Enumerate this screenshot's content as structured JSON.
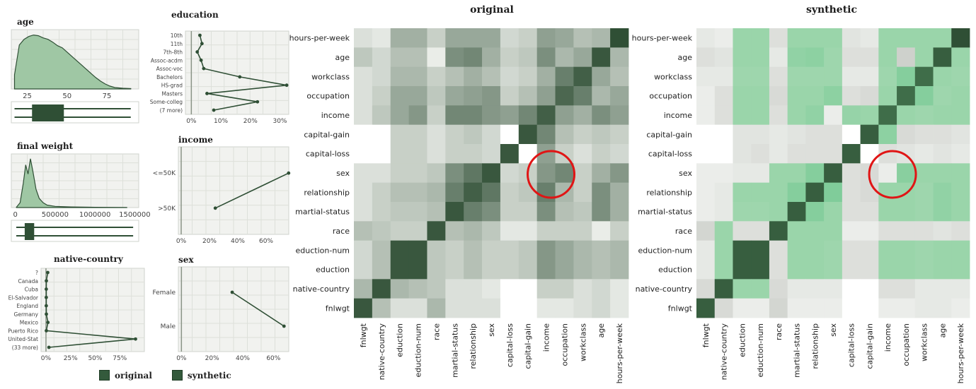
{
  "chart_data": [
    {
      "id": "age",
      "type": "area",
      "title": "age",
      "x_ticks": [
        25,
        50,
        75
      ],
      "xlim": [
        15,
        95
      ],
      "series": [
        {
          "name": "original",
          "x": [
            17,
            20,
            23,
            26,
            29,
            32,
            35,
            38,
            41,
            44,
            47,
            50,
            53,
            56,
            59,
            62,
            65,
            68,
            71,
            74,
            77,
            80,
            85,
            90
          ],
          "values": [
            20,
            62,
            70,
            74,
            76,
            75,
            72,
            70,
            66,
            61,
            58,
            52,
            46,
            40,
            34,
            28,
            22,
            16,
            11,
            7,
            4,
            2,
            1,
            0.5
          ]
        }
      ],
      "boxplots": [
        {
          "name": "original",
          "q1": 28,
          "median": 37,
          "q3": 48,
          "min": 17,
          "max": 90
        },
        {
          "name": "synthetic",
          "q1": 28,
          "median": 37,
          "q3": 48,
          "min": 17,
          "max": 90
        }
      ]
    },
    {
      "id": "final-weight",
      "type": "area",
      "title": "final weight",
      "x_ticks": [
        0,
        500000,
        1000000,
        1500000
      ],
      "x_tick_labels": [
        "0",
        "500000",
        "1000000",
        "1500000"
      ],
      "xlim": [
        -50000,
        1550000
      ],
      "series": [
        {
          "name": "original",
          "x": [
            10000,
            60000,
            100000,
            130000,
            160000,
            190000,
            220000,
            260000,
            300000,
            350000,
            400000,
            500000,
            700000,
            1000000,
            1400000
          ],
          "values": [
            0,
            8,
            40,
            70,
            55,
            80,
            60,
            30,
            15,
            8,
            4,
            2,
            1,
            0.5,
            0.2
          ]
        }
      ],
      "boxplots": [
        {
          "name": "original",
          "q1": 118000,
          "median": 178000,
          "q3": 237000,
          "min": 12000,
          "max": 1480000
        },
        {
          "name": "synthetic",
          "q1": 118000,
          "median": 178000,
          "q3": 237000,
          "min": 12000,
          "max": 1480000
        }
      ]
    },
    {
      "id": "native-country",
      "type": "line",
      "title": "native-country",
      "categories": [
        "?",
        "Canada",
        "Cuba",
        "El-Salvador",
        "England",
        "Germany",
        "Mexico",
        "Puerto Rico",
        "United-Stat",
        "(33 more)"
      ],
      "x_ticks": [
        0,
        25,
        50,
        75
      ],
      "x_tick_labels": [
        "0%",
        "25%",
        "50%",
        "75%"
      ],
      "xlim": [
        -5,
        100
      ],
      "series": [
        {
          "name": "original",
          "values": [
            1.8,
            0.4,
            0.3,
            0.3,
            0.3,
            0.4,
            2.0,
            0.4,
            91.0,
            3.0
          ]
        }
      ]
    },
    {
      "id": "education",
      "type": "line",
      "title": "education",
      "categories": [
        "10th",
        "11th",
        "7th-8th",
        "Assoc-acdm",
        "Assoc-voc",
        "Bachelors",
        "HS-grad",
        "Masters",
        "Some-colleg",
        "(7 more)"
      ],
      "x_ticks": [
        0,
        10,
        20,
        30
      ],
      "x_tick_labels": [
        "0%",
        "10%",
        "20%",
        "30%"
      ],
      "xlim": [
        -2,
        33
      ],
      "series": [
        {
          "name": "original",
          "values": [
            2.9,
            3.6,
            2.0,
            3.3,
            4.2,
            16.4,
            32.3,
            5.3,
            22.4,
            7.6
          ]
        }
      ]
    },
    {
      "id": "income",
      "type": "line",
      "title": "income",
      "categories": [
        "<=50K",
        ">50K"
      ],
      "x_ticks": [
        0,
        20,
        40,
        60
      ],
      "x_tick_labels": [
        "0%",
        "20%",
        "40%",
        "60%"
      ],
      "xlim": [
        -2,
        76
      ],
      "series": [
        {
          "name": "original",
          "values": [
            75.9,
            24.1
          ]
        }
      ]
    },
    {
      "id": "sex",
      "type": "line",
      "title": "sex",
      "categories": [
        "Female",
        "Male"
      ],
      "x_ticks": [
        0,
        20,
        40,
        60
      ],
      "x_tick_labels": [
        "0%",
        "20%",
        "40%",
        "60%"
      ],
      "xlim": [
        -2,
        70
      ],
      "series": [
        {
          "name": "original",
          "values": [
            33.1,
            66.9
          ]
        }
      ]
    },
    {
      "id": "heatmap-original",
      "type": "heatmap",
      "title": "original",
      "row_labels": [
        "hours-per-week",
        "age",
        "workclass",
        "occupation",
        "income",
        "capital-gain",
        "capital-loss",
        "sex",
        "relationship",
        "martial-status",
        "race",
        "eduction-num",
        "eduction",
        "native-country",
        "fnlwgt"
      ],
      "col_labels": [
        "fnlwgt",
        "native-country",
        "eduction",
        "eduction-num",
        "race",
        "martial-status",
        "relationship",
        "sex",
        "capital-loss",
        "capital-gain",
        "income",
        "occupation",
        "workclass",
        "age",
        "hours-per-week"
      ],
      "values": [
        [
          0.1,
          0.05,
          0.4,
          0.4,
          0.2,
          0.45,
          0.45,
          0.45,
          0.15,
          0.2,
          0.5,
          0.45,
          0.3,
          0.35,
          1.0
        ],
        [
          0.25,
          0.15,
          0.3,
          0.3,
          0.02,
          0.6,
          0.65,
          0.4,
          0.2,
          0.25,
          0.6,
          0.35,
          0.45,
          0.95,
          0.35
        ],
        [
          0.1,
          0.15,
          0.35,
          0.35,
          0.2,
          0.3,
          0.4,
          0.3,
          0.15,
          0.2,
          0.4,
          0.7,
          0.9,
          0.45,
          0.3
        ],
        [
          0.1,
          0.2,
          0.45,
          0.45,
          0.25,
          0.45,
          0.5,
          0.55,
          0.2,
          0.3,
          0.5,
          0.85,
          0.7,
          0.35,
          0.45
        ],
        [
          0.1,
          0.25,
          0.45,
          0.55,
          0.2,
          0.65,
          0.65,
          0.55,
          0.5,
          0.65,
          0.9,
          0.5,
          0.4,
          0.6,
          0.5
        ],
        [
          0.0,
          0.0,
          0.2,
          0.2,
          0.1,
          0.2,
          0.25,
          0.15,
          0.0,
          0.95,
          0.65,
          0.3,
          0.2,
          0.25,
          0.2
        ],
        [
          0.0,
          0.0,
          0.2,
          0.2,
          0.1,
          0.2,
          0.2,
          0.15,
          0.95,
          0.0,
          0.5,
          0.2,
          0.1,
          0.2,
          0.15
        ],
        [
          0.1,
          0.1,
          0.2,
          0.2,
          0.25,
          0.6,
          0.75,
          0.95,
          0.15,
          0.2,
          0.55,
          0.65,
          0.2,
          0.4,
          0.55
        ],
        [
          0.1,
          0.2,
          0.3,
          0.3,
          0.35,
          0.7,
          0.9,
          0.75,
          0.2,
          0.25,
          0.7,
          0.35,
          0.2,
          0.6,
          0.4
        ],
        [
          0.1,
          0.2,
          0.25,
          0.25,
          0.3,
          0.95,
          0.7,
          0.6,
          0.2,
          0.2,
          0.6,
          0.3,
          0.25,
          0.6,
          0.4
        ],
        [
          0.3,
          0.25,
          0.2,
          0.2,
          0.95,
          0.3,
          0.35,
          0.25,
          0.05,
          0.05,
          0.2,
          0.2,
          0.2,
          0.02,
          0.2
        ],
        [
          0.15,
          0.3,
          0.95,
          0.95,
          0.25,
          0.2,
          0.3,
          0.2,
          0.2,
          0.25,
          0.55,
          0.45,
          0.35,
          0.3,
          0.35
        ],
        [
          0.15,
          0.3,
          0.95,
          0.95,
          0.25,
          0.2,
          0.3,
          0.2,
          0.2,
          0.25,
          0.55,
          0.45,
          0.35,
          0.3,
          0.35
        ],
        [
          0.35,
          0.95,
          0.35,
          0.3,
          0.25,
          0.1,
          0.1,
          0.05,
          0.0,
          0.0,
          0.2,
          0.2,
          0.1,
          0.15,
          0.05
        ],
        [
          0.95,
          0.3,
          0.1,
          0.1,
          0.35,
          0.1,
          0.1,
          0.1,
          0.0,
          0.0,
          0.05,
          0.05,
          0.1,
          0.15,
          0.05
        ]
      ],
      "highlight": {
        "row": 7,
        "cols": [
          10,
          11
        ],
        "note": "circled cells"
      }
    },
    {
      "id": "heatmap-synthetic",
      "type": "heatmap",
      "title": "synthetic",
      "row_labels": [
        "hours-per-week",
        "age",
        "workclass",
        "occupation",
        "income",
        "capital-gain",
        "capital-loss",
        "sex",
        "relationship",
        "martial-status",
        "race",
        "eduction-num",
        "eduction",
        "native-country",
        "fnlwgt"
      ],
      "col_labels": [
        "fnlwgt",
        "native-country",
        "eduction",
        "eduction-num",
        "race",
        "martial-status",
        "relationship",
        "sex",
        "capital-loss",
        "capital-gain",
        "income",
        "occupation",
        "workclass",
        "age",
        "hours-per-week"
      ],
      "values": [
        [
          0.1,
          0.05,
          0.45,
          0.45,
          0.2,
          0.45,
          0.45,
          0.45,
          0.15,
          0.1,
          0.45,
          0.45,
          0.45,
          0.45,
          1.0
        ],
        [
          0.2,
          0.15,
          0.45,
          0.45,
          0.1,
          0.55,
          0.6,
          0.4,
          0.2,
          0.2,
          0.45,
          0.35,
          0.45,
          0.95,
          0.45
        ],
        [
          0.1,
          0.1,
          0.4,
          0.4,
          0.2,
          0.4,
          0.4,
          0.4,
          0.1,
          0.1,
          0.4,
          0.7,
          0.9,
          0.45,
          0.4
        ],
        [
          0.05,
          0.2,
          0.45,
          0.45,
          0.25,
          0.45,
          0.45,
          0.6,
          0.2,
          0.25,
          0.45,
          0.9,
          0.7,
          0.4,
          0.45
        ],
        [
          0.05,
          0.2,
          0.45,
          0.45,
          0.2,
          0.45,
          0.55,
          0.05,
          0.5,
          0.45,
          0.9,
          0.45,
          0.4,
          0.45,
          0.45
        ],
        [
          0.0,
          0.0,
          0.15,
          0.15,
          0.1,
          0.15,
          0.2,
          0.2,
          0.0,
          0.95,
          0.6,
          0.25,
          0.2,
          0.2,
          0.15
        ],
        [
          0.0,
          0.0,
          0.15,
          0.2,
          0.1,
          0.2,
          0.2,
          0.2,
          0.95,
          0.0,
          0.2,
          0.15,
          0.1,
          0.15,
          0.1
        ],
        [
          0.05,
          0.05,
          0.1,
          0.1,
          0.45,
          0.45,
          0.7,
          0.95,
          0.2,
          0.25,
          0.05,
          0.65,
          0.45,
          0.45,
          0.45
        ],
        [
          0.05,
          0.1,
          0.45,
          0.45,
          0.45,
          0.7,
          0.95,
          0.75,
          0.2,
          0.25,
          0.45,
          0.45,
          0.4,
          0.55,
          0.45
        ],
        [
          0.05,
          0.1,
          0.4,
          0.4,
          0.45,
          0.95,
          0.7,
          0.45,
          0.2,
          0.2,
          0.45,
          0.45,
          0.4,
          0.55,
          0.45
        ],
        [
          0.3,
          0.45,
          0.2,
          0.2,
          0.95,
          0.45,
          0.45,
          0.45,
          0.05,
          0.05,
          0.2,
          0.2,
          0.2,
          0.15,
          0.2
        ],
        [
          0.1,
          0.45,
          0.95,
          0.95,
          0.2,
          0.45,
          0.45,
          0.4,
          0.2,
          0.2,
          0.45,
          0.45,
          0.4,
          0.45,
          0.45
        ],
        [
          0.1,
          0.45,
          0.95,
          0.95,
          0.2,
          0.45,
          0.45,
          0.4,
          0.2,
          0.2,
          0.45,
          0.45,
          0.4,
          0.45,
          0.45
        ],
        [
          0.25,
          0.95,
          0.45,
          0.45,
          0.25,
          0.1,
          0.1,
          0.1,
          0.0,
          0.0,
          0.2,
          0.2,
          0.1,
          0.1,
          0.1
        ],
        [
          0.95,
          0.25,
          0.05,
          0.05,
          0.3,
          0.05,
          0.05,
          0.05,
          0.0,
          0.0,
          0.05,
          0.05,
          0.1,
          0.1,
          0.05
        ]
      ],
      "highlight": {
        "row": 7,
        "cols": [
          10,
          11
        ],
        "note": "circled cells"
      }
    }
  ],
  "legend": {
    "items": [
      {
        "label": "original",
        "color": "#345a3c"
      },
      {
        "label": "synthetic",
        "color": "#345a3c"
      }
    ],
    "position": "bottom-left"
  },
  "colors": {
    "dark_green": "#2f4f35",
    "original_light": "#f2f4f1",
    "synthetic_mid": "#7ccb97",
    "highlight_circle": "#e01515"
  }
}
